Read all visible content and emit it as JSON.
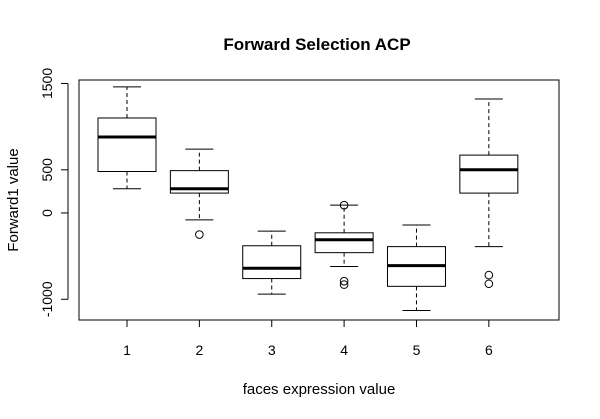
{
  "chart_data": {
    "type": "boxplot",
    "title": "Forward Selection ACP",
    "xlabel": "faces expression value",
    "ylabel": "Forward1 value",
    "ylim": [
      -1240,
      1540
    ],
    "yticks": [
      -1000,
      0,
      500,
      1500
    ],
    "ytick_labels": [
      "-1000",
      "0",
      "500",
      "1500"
    ],
    "categories": [
      "1",
      "2",
      "3",
      "4",
      "5",
      "6"
    ],
    "boxes": [
      {
        "category": "1",
        "whisker_low": 280,
        "q1": 480,
        "median": 880,
        "q3": 1100,
        "whisker_high": 1460,
        "outliers": []
      },
      {
        "category": "2",
        "whisker_low": -80,
        "q1": 230,
        "median": 280,
        "q3": 490,
        "whisker_high": 740,
        "outliers": [
          -250
        ]
      },
      {
        "category": "3",
        "whisker_low": -940,
        "q1": -760,
        "median": -640,
        "q3": -380,
        "whisker_high": -210,
        "outliers": []
      },
      {
        "category": "4",
        "whisker_low": -620,
        "q1": -460,
        "median": -310,
        "q3": -230,
        "whisker_high": 90,
        "outliers": [
          90,
          -790,
          -830
        ]
      },
      {
        "category": "5",
        "whisker_low": -1130,
        "q1": -850,
        "median": -610,
        "q3": -390,
        "whisker_high": -140,
        "outliers": []
      },
      {
        "category": "6",
        "whisker_low": -390,
        "q1": 230,
        "median": 500,
        "q3": 670,
        "whisker_high": 1320,
        "outliers": [
          -720,
          -820
        ]
      }
    ]
  }
}
